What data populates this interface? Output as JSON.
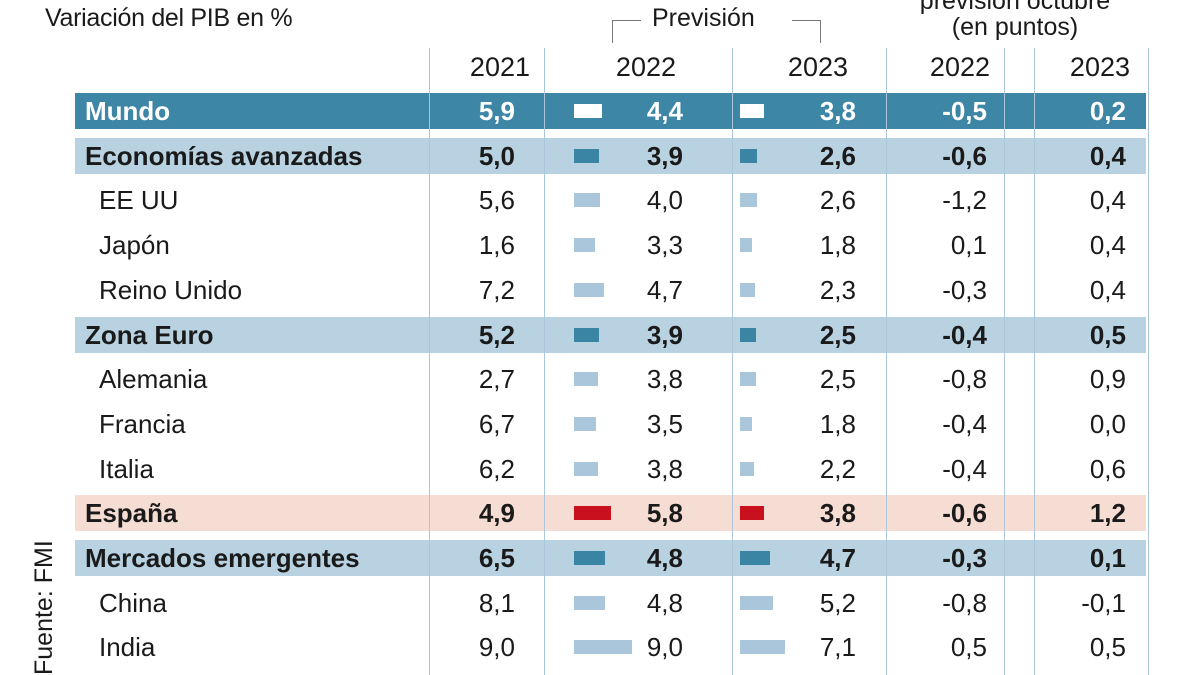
{
  "chart_data": {
    "type": "table",
    "title": "Variación del PIB en %",
    "group_headers": {
      "forecast": "Previsión",
      "difference": [
        "previsión octubre",
        "(en puntos)"
      ]
    },
    "columns": [
      "2021",
      "2022",
      "2023",
      "2022",
      "2023"
    ],
    "source": "Fuente: FMI",
    "colors": {
      "header_band": "#3d86a6",
      "group_band": "#b8d2e2",
      "bar_light": "#a9c6da",
      "bar_dark": "#3a84a4",
      "highlight_band": "#f6ddd3",
      "highlight_bar": "#c8101e"
    },
    "rows": [
      {
        "name": "Mundo",
        "style": "header",
        "v2021": "5,9",
        "v2022": "4,4",
        "v2023": "3,8",
        "d2022": "-0,5",
        "d2023": "0,2",
        "b2022": 4.4,
        "b2023": 3.8
      },
      {
        "name": "Economías avanzadas",
        "style": "group",
        "v2021": "5,0",
        "v2022": "3,9",
        "v2023": "2,6",
        "d2022": "-0,6",
        "d2023": "0,4",
        "b2022": 3.9,
        "b2023": 2.6
      },
      {
        "name": "EE UU",
        "style": "normal",
        "v2021": "5,6",
        "v2022": "4,0",
        "v2023": "2,6",
        "d2022": "-1,2",
        "d2023": "0,4",
        "b2022": 4.0,
        "b2023": 2.6
      },
      {
        "name": "Japón",
        "style": "normal",
        "v2021": "1,6",
        "v2022": "3,3",
        "v2023": "1,8",
        "d2022": "0,1",
        "d2023": "0,4",
        "b2022": 3.3,
        "b2023": 1.8
      },
      {
        "name": "Reino Unido",
        "style": "normal",
        "v2021": "7,2",
        "v2022": "4,7",
        "v2023": "2,3",
        "d2022": "-0,3",
        "d2023": "0,4",
        "b2022": 4.7,
        "b2023": 2.3
      },
      {
        "name": "Zona Euro",
        "style": "group",
        "v2021": "5,2",
        "v2022": "3,9",
        "v2023": "2,5",
        "d2022": "-0,4",
        "d2023": "0,5",
        "b2022": 3.9,
        "b2023": 2.5
      },
      {
        "name": "Alemania",
        "style": "normal",
        "v2021": "2,7",
        "v2022": "3,8",
        "v2023": "2,5",
        "d2022": "-0,8",
        "d2023": "0,9",
        "b2022": 3.8,
        "b2023": 2.5
      },
      {
        "name": "Francia",
        "style": "normal",
        "v2021": "6,7",
        "v2022": "3,5",
        "v2023": "1,8",
        "d2022": "-0,4",
        "d2023": "0,0",
        "b2022": 3.5,
        "b2023": 1.8
      },
      {
        "name": "Italia",
        "style": "normal",
        "v2021": "6,2",
        "v2022": "3,8",
        "v2023": "2,2",
        "d2022": "-0,4",
        "d2023": "0,6",
        "b2022": 3.8,
        "b2023": 2.2
      },
      {
        "name": "España",
        "style": "highlight",
        "v2021": "4,9",
        "v2022": "5,8",
        "v2023": "3,8",
        "d2022": "-0,6",
        "d2023": "1,2",
        "b2022": 5.8,
        "b2023": 3.8
      },
      {
        "name": "Mercados emergentes",
        "style": "group",
        "v2021": "6,5",
        "v2022": "4,8",
        "v2023": "4,7",
        "d2022": "-0,3",
        "d2023": "0,1",
        "b2022": 4.8,
        "b2023": 4.7
      },
      {
        "name": "China",
        "style": "normal",
        "v2021": "8,1",
        "v2022": "4,8",
        "v2023": "5,2",
        "d2022": "-0,8",
        "d2023": "-0,1",
        "b2022": 4.8,
        "b2023": 5.2
      },
      {
        "name": "India",
        "style": "normal",
        "v2021": "9,0",
        "v2022": "9,0",
        "v2023": "7,1",
        "d2022": "0,5",
        "d2023": "0,5",
        "b2022": 9.0,
        "b2023": 7.1
      }
    ]
  }
}
